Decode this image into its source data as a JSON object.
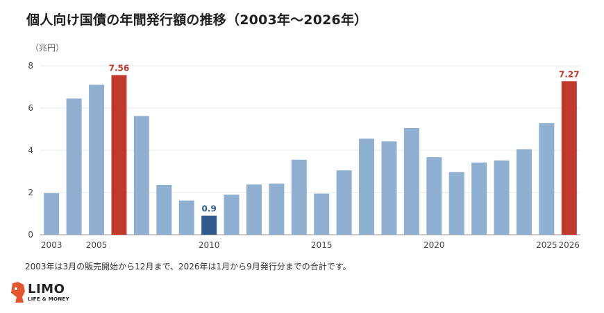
{
  "title": "個人向け国債の年間発行額の推移（2003年〜2026年）",
  "unit_label": "（兆円）",
  "footnote": "2003年は3月の販売開始から12月まで、2026年は1月から9月発行分までの合計です。",
  "logo": {
    "name": "LIMO",
    "tagline": "LIFE & MONEY"
  },
  "colors": {
    "normal": "#8fb0d0",
    "highlight": "#c0392b",
    "min": "#2e5a8c",
    "grid": "#e3e8e3",
    "axis": "#999999"
  },
  "chart_data": {
    "type": "bar",
    "categories": [
      "2003",
      "2004",
      "2005",
      "2006",
      "2007",
      "2008",
      "2009",
      "2010",
      "2011",
      "2012",
      "2013",
      "2014",
      "2015",
      "2016",
      "2017",
      "2018",
      "2019",
      "2020",
      "2021",
      "2022",
      "2023",
      "2024",
      "2025",
      "2026"
    ],
    "values": [
      1.97,
      6.45,
      7.1,
      7.56,
      5.62,
      2.36,
      1.62,
      0.9,
      1.9,
      2.38,
      2.42,
      3.55,
      1.95,
      3.05,
      4.55,
      4.42,
      5.05,
      3.67,
      2.97,
      3.42,
      3.52,
      4.05,
      5.28,
      7.27
    ],
    "x_tick_labels": [
      "2003",
      "2005",
      "2010",
      "2015",
      "2020",
      "2025",
      "2026"
    ],
    "y_ticks": [
      0,
      2,
      4,
      6,
      8
    ],
    "ylim": [
      0,
      8
    ],
    "highlights": {
      "2006": "highlight",
      "2026": "highlight",
      "2010": "min"
    },
    "data_labels": {
      "2006": "7.56",
      "2010": "0.9",
      "2026": "7.27"
    },
    "grid": true,
    "legend": "none"
  }
}
